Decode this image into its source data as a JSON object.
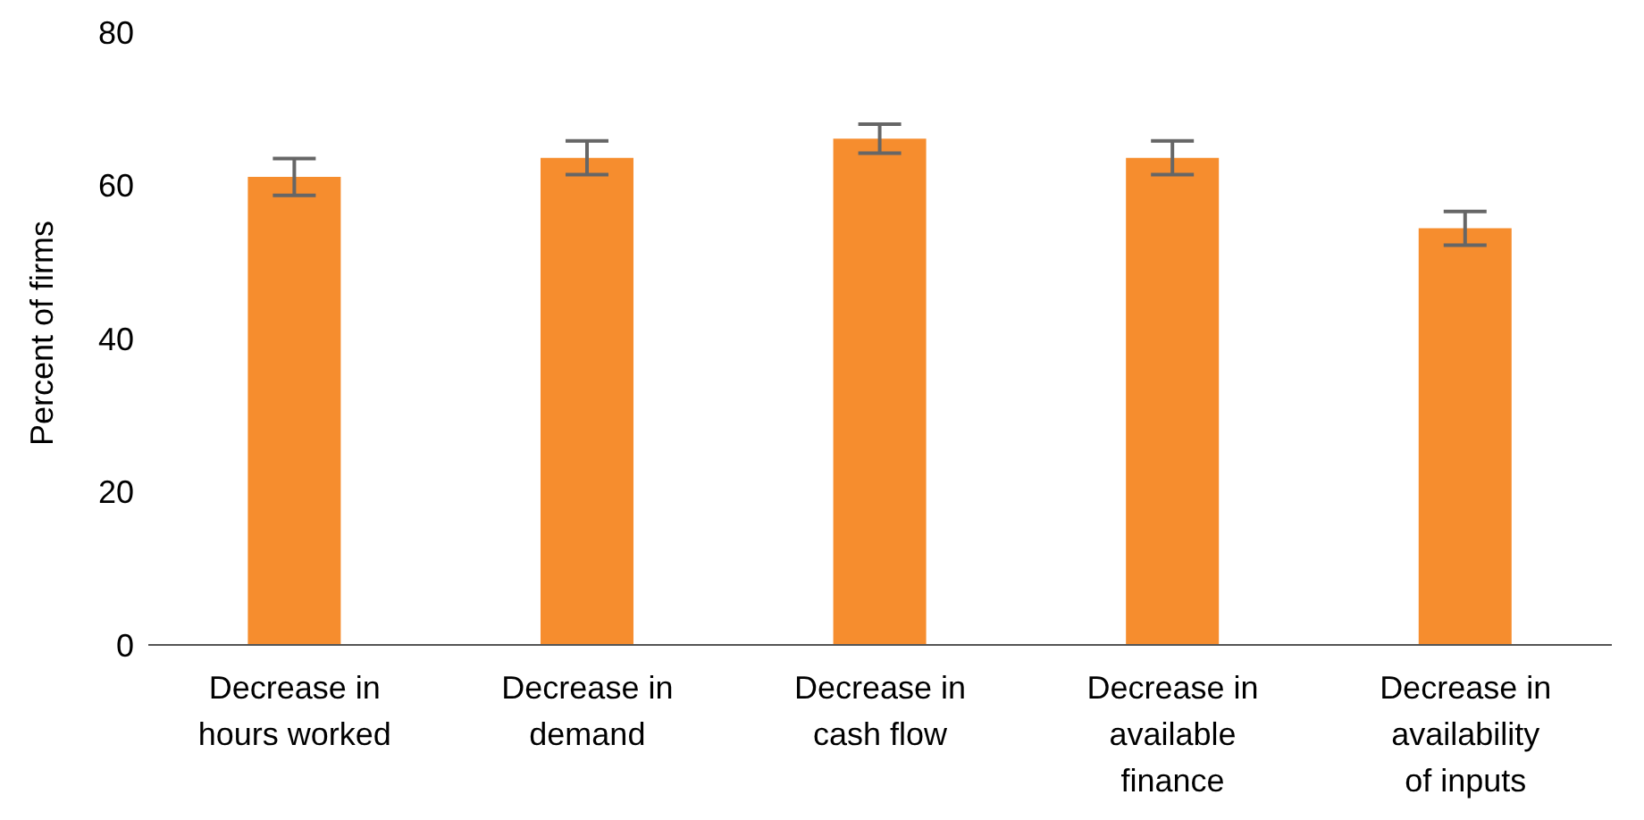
{
  "chart_data": {
    "type": "bar",
    "ylabel": "Percent of firms",
    "categories": [
      "Decrease in hours worked",
      "Decrease in demand",
      "Decrease in cash flow",
      "Decrease in available finance",
      "Decrease in availability of inputs"
    ],
    "values": [
      61.1,
      63.6,
      66.1,
      63.6,
      54.4
    ],
    "errors": [
      2.4,
      2.2,
      1.9,
      2.2,
      2.2
    ],
    "color": "#f68d2e",
    "ylim": [
      0,
      80
    ],
    "yticks": [
      0,
      20,
      40,
      60,
      80
    ],
    "grid": false,
    "legend": false
  }
}
